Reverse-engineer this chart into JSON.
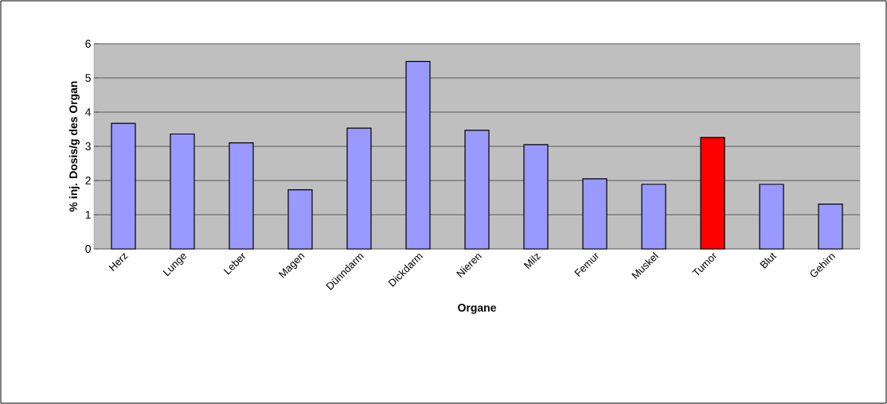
{
  "chart_data": {
    "type": "bar",
    "xlabel": "Organe",
    "ylabel": "% inj. Dosis/g des Organ",
    "categories": [
      "Herz",
      "Lunge",
      "Leber",
      "Magen",
      "Dünndarm",
      "Dickdarm",
      "Nieren",
      "Milz",
      "Femur",
      "Muskel",
      "Tumor",
      "Blut",
      "Gehirn"
    ],
    "values": [
      3.67,
      3.36,
      3.1,
      1.73,
      3.53,
      5.48,
      3.47,
      3.05,
      2.05,
      1.89,
      3.26,
      1.89,
      1.31
    ],
    "colors": [
      "#9999ff",
      "#9999ff",
      "#9999ff",
      "#9999ff",
      "#9999ff",
      "#9999ff",
      "#9999ff",
      "#9999ff",
      "#9999ff",
      "#9999ff",
      "#ff0000",
      "#9999ff",
      "#9999ff"
    ],
    "ylim": [
      0,
      6
    ],
    "yticks": [
      0,
      1,
      2,
      3,
      4,
      5,
      6
    ],
    "grid": "y"
  }
}
